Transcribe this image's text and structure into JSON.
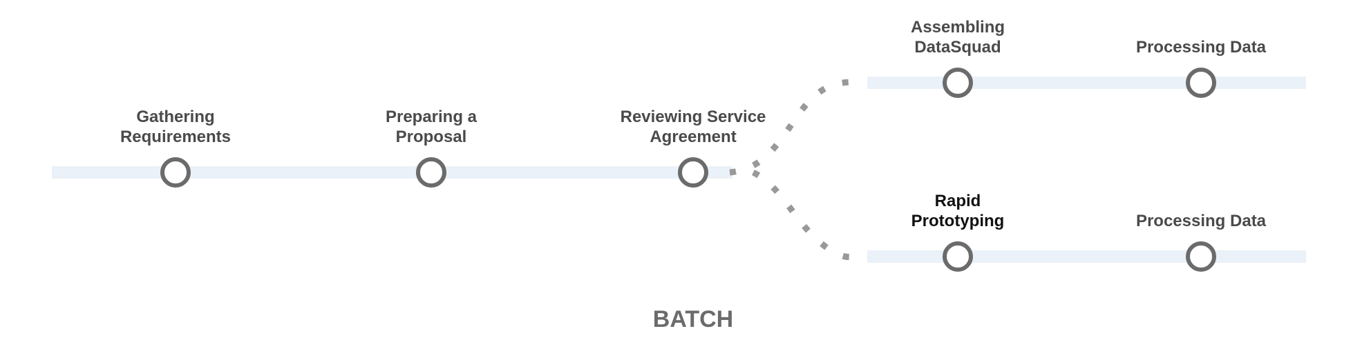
{
  "diagram": {
    "caption": "BATCH",
    "tracks": {
      "main": {
        "name": "main-track",
        "steps": [
          {
            "name": "gathering-requirements",
            "lines": [
              "Gathering",
              "Requirements"
            ]
          },
          {
            "name": "preparing-a-proposal",
            "lines": [
              "Preparing a",
              "Proposal"
            ]
          },
          {
            "name": "reviewing-service-agreement",
            "lines": [
              "Reviewing Service",
              "Agreement"
            ]
          }
        ]
      },
      "upper": {
        "name": "upper-branch-track",
        "steps": [
          {
            "name": "assembling-datasquad",
            "lines": [
              "Assembling",
              "DataSquad"
            ]
          },
          {
            "name": "processing-data-upper",
            "lines": [
              "Processing Data"
            ]
          }
        ]
      },
      "lower": {
        "name": "lower-branch-track",
        "steps": [
          {
            "name": "rapid-prototyping",
            "lines": [
              "Rapid",
              "Prototyping"
            ],
            "emphasis": true
          },
          {
            "name": "processing-data-lower",
            "lines": [
              "Processing Data"
            ]
          }
        ]
      }
    },
    "colors": {
      "track": "#eaf1f8",
      "node_stroke": "#6b6b6b",
      "connector": "#999999",
      "label": "#4a4a4a",
      "label_emphasis": "#111111",
      "caption": "#6b6b6b"
    }
  }
}
